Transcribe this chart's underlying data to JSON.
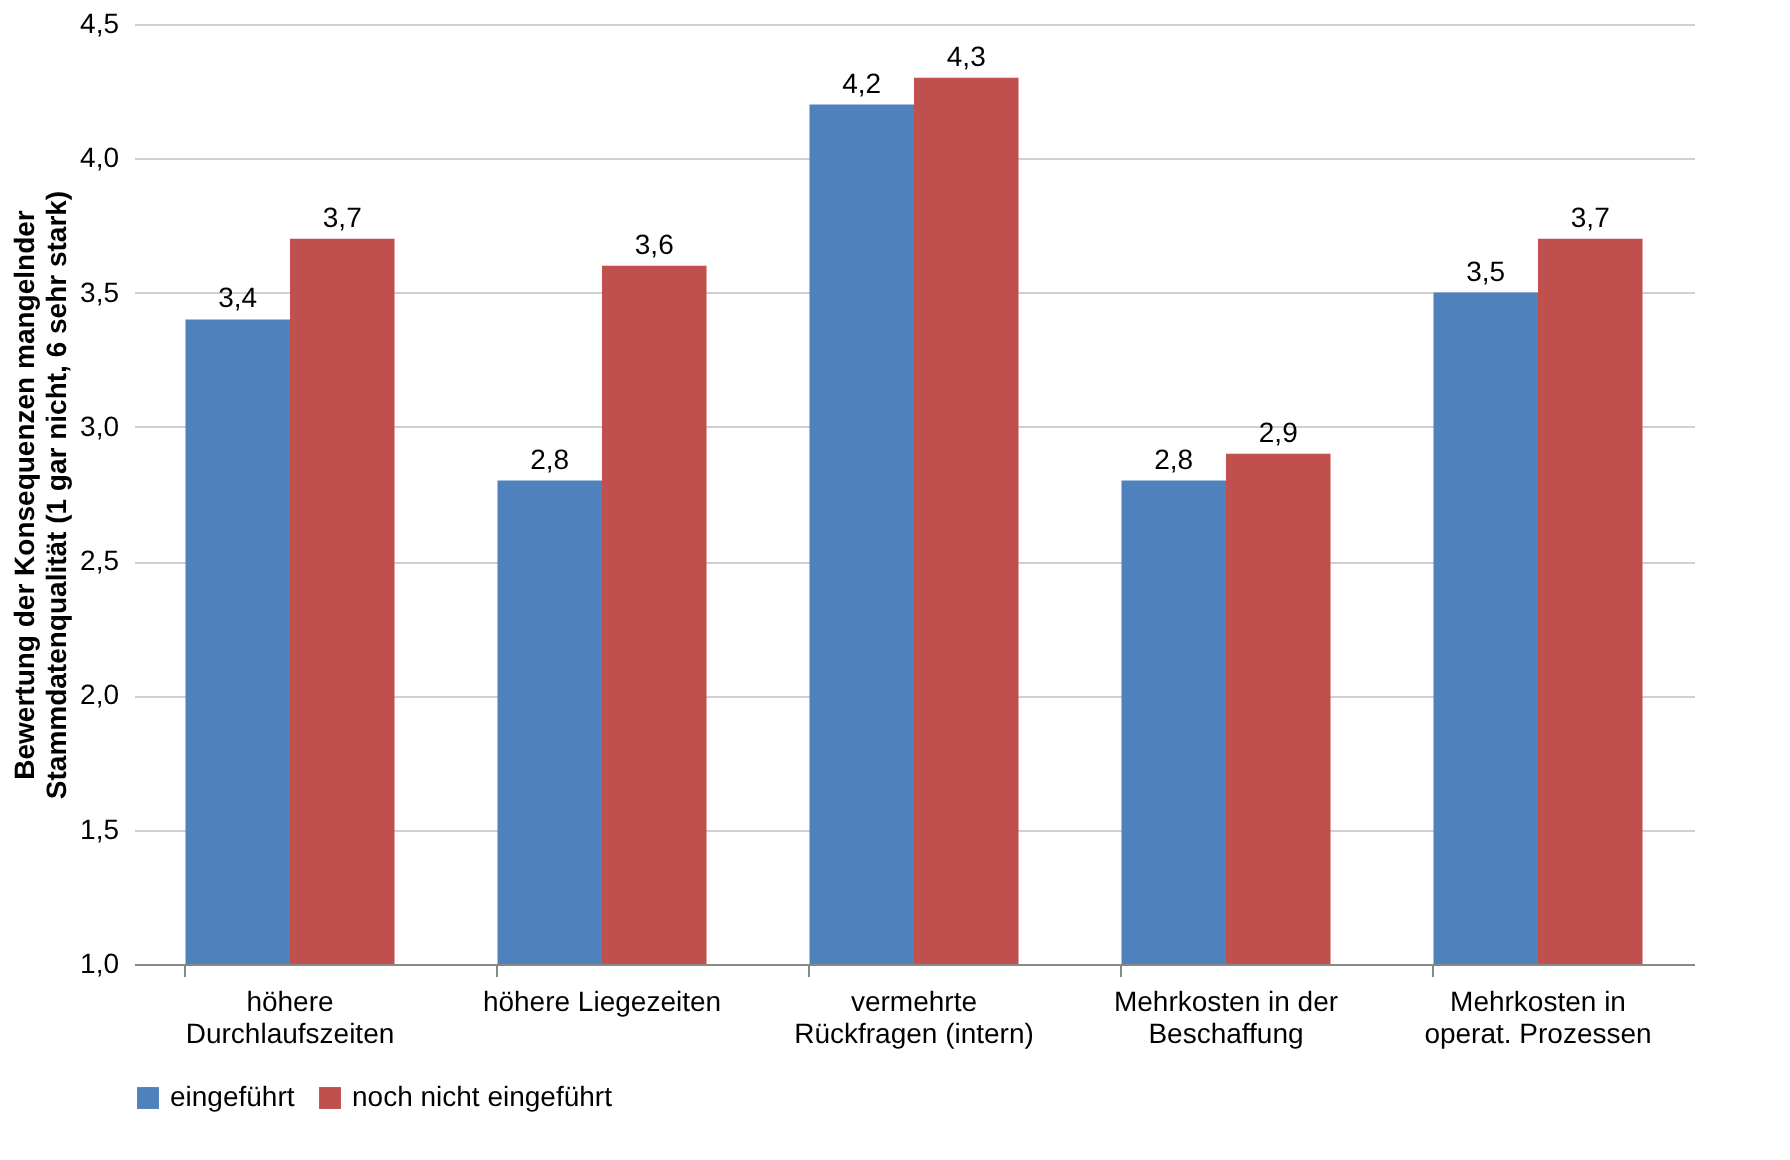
{
  "chart_data": {
    "type": "bar",
    "ylabel": "Bewertung der Konsequenzen mangelnder\nStammdatenqualität (1 gar nicht, 6 sehr stark)",
    "categories": [
      "höhere\nDurchlaufszeiten",
      "höhere Liegezeiten",
      "vermehrte\nRückfragen (intern)",
      "Mehrkosten in der\nBeschaffung",
      "Mehrkosten in\noperat. Prozessen"
    ],
    "series": [
      {
        "name": "eingeführt",
        "color": "#4f81bd",
        "values": [
          3.4,
          2.8,
          4.2,
          2.8,
          3.5
        ],
        "value_labels": [
          "3,4",
          "2,8",
          "4,2",
          "2,8",
          "3,5"
        ]
      },
      {
        "name": "noch nicht eingeführt",
        "color": "#c0504d",
        "values": [
          3.7,
          3.6,
          4.3,
          2.9,
          3.7
        ],
        "value_labels": [
          "3,7",
          "3,6",
          "4,3",
          "2,9",
          "3,7"
        ]
      }
    ],
    "ylim": [
      1.0,
      4.5
    ],
    "yticks": [
      {
        "value": 1.0,
        "label": "1,0"
      },
      {
        "value": 1.5,
        "label": "1,5"
      },
      {
        "value": 2.0,
        "label": "2,0"
      },
      {
        "value": 2.5,
        "label": "2,5"
      },
      {
        "value": 3.0,
        "label": "3,0"
      },
      {
        "value": 3.5,
        "label": "3,5"
      },
      {
        "value": 4.0,
        "label": "4,0"
      },
      {
        "value": 4.5,
        "label": "4,5"
      }
    ],
    "grid": "y",
    "legend": "bottom"
  }
}
